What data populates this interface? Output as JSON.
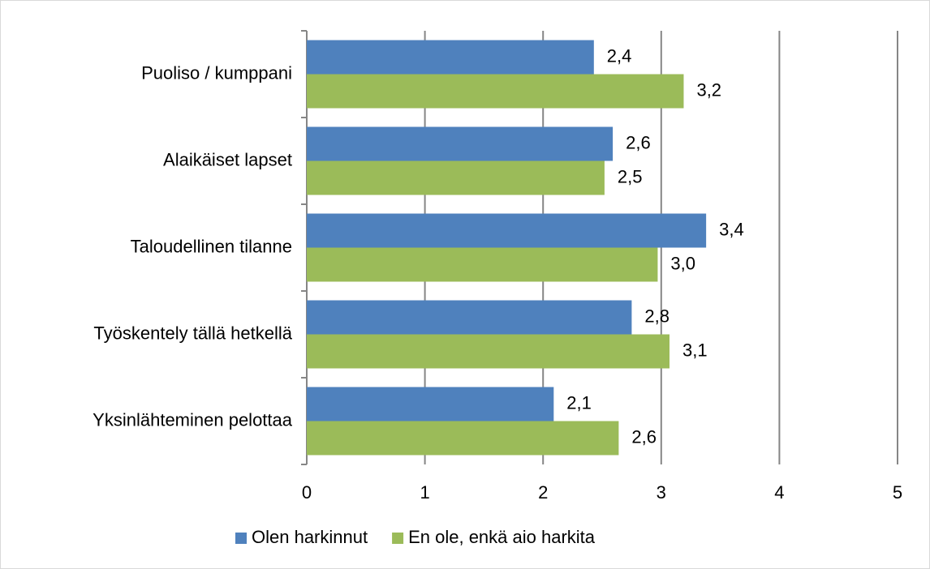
{
  "chart_data": {
    "type": "bar",
    "orientation": "horizontal",
    "categories": [
      "Puoliso / kumppani",
      "Alaikäiset lapset",
      "Taloudellinen tilanne",
      "Työskentely tällä hetkellä",
      "Yksinlähteminen pelottaa"
    ],
    "series": [
      {
        "name": "Olen harkinnut",
        "color": "#4f81bd",
        "values": [
          2.43,
          2.59,
          3.38,
          2.75,
          2.09
        ],
        "value_labels": [
          "2,4",
          "2,6",
          "3,4",
          "2,8",
          "2,1"
        ]
      },
      {
        "name": "En ole, enkä aio harkita",
        "color": "#9bbb59",
        "values": [
          3.19,
          2.52,
          2.97,
          3.07,
          2.64
        ],
        "value_labels": [
          "3,2",
          "2,5",
          "3,0",
          "3,1",
          "2,6"
        ]
      }
    ],
    "xlim": [
      0,
      5
    ],
    "xticks": [
      0,
      1,
      2,
      3,
      4,
      5
    ],
    "grid": true,
    "legend": "bottom"
  }
}
